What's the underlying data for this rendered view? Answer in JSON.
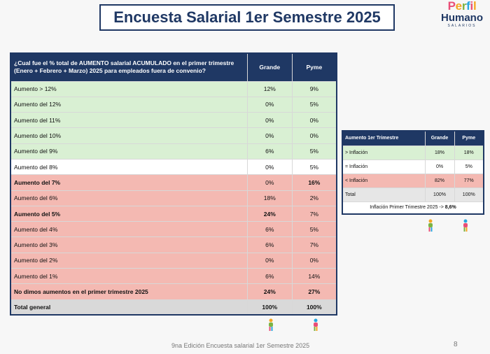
{
  "title": "Encuesta Salarial 1er Semestre 2025",
  "logo": {
    "perfil": "Perfil",
    "humano": "Humano",
    "salarios": "SALARIOS"
  },
  "main_table": {
    "question": "¿Cual fue el % total de AUMENTO salarial ACUMULADO en el primer trimestre (Enero + Febrero + Marzo) 2025 para empleados fuera de convenio?",
    "col_grande": "Grande",
    "col_pyme": "Pyme",
    "rows": [
      {
        "label": "Aumento > 12%",
        "grande": "12%",
        "pyme": "9%"
      },
      {
        "label": "Aumento del 12%",
        "grande": "0%",
        "pyme": "5%"
      },
      {
        "label": "Aumento del 11%",
        "grande": "0%",
        "pyme": "0%"
      },
      {
        "label": "Aumento del 10%",
        "grande": "0%",
        "pyme": "0%"
      },
      {
        "label": "Aumento del 9%",
        "grande": "6%",
        "pyme": "5%"
      },
      {
        "label": "Aumento del 8%",
        "grande": "0%",
        "pyme": "5%"
      },
      {
        "label": "Aumento del 7%",
        "grande": "0%",
        "pyme": "16%"
      },
      {
        "label": "Aumento del 6%",
        "grande": "18%",
        "pyme": "2%"
      },
      {
        "label": "Aumento del 5%",
        "grande": "24%",
        "pyme": "7%"
      },
      {
        "label": "Aumento del 4%",
        "grande": "6%",
        "pyme": "5%"
      },
      {
        "label": "Aumento del 3%",
        "grande": "6%",
        "pyme": "7%"
      },
      {
        "label": "Aumento del 2%",
        "grande": "0%",
        "pyme": "0%"
      },
      {
        "label": "Aumento del 1%",
        "grande": "6%",
        "pyme": "14%"
      },
      {
        "label": "No dimos aumentos en el primer trimestre 2025",
        "grande": "24%",
        "pyme": "27%"
      },
      {
        "label": "Total general",
        "grande": "100%",
        "pyme": "100%"
      }
    ]
  },
  "side_table": {
    "header": "Aumento 1er Trimestre",
    "col_grande": "Grande",
    "col_pyme": "Pyme",
    "rows": [
      {
        "label": "> Inflación",
        "grande": "18%",
        "pyme": "18%"
      },
      {
        "label": "= Inflación",
        "grande": "0%",
        "pyme": "5%"
      },
      {
        "label": "< Inflación",
        "grande": "82%",
        "pyme": "77%"
      },
      {
        "label": "Total",
        "grande": "100%",
        "pyme": "100%"
      }
    ],
    "inflation_text": "Inflación Primer Trimestre 2025 ->",
    "inflation_value": "8,6%"
  },
  "footer": "9na Edición Encuesta salarial 1er Semestre 2025",
  "page_number": "8",
  "colors": {
    "navy": "#1f3864",
    "green_row": "#d9f0d3",
    "red_row": "#f4b9b2",
    "total_row": "#d9d9d9"
  }
}
